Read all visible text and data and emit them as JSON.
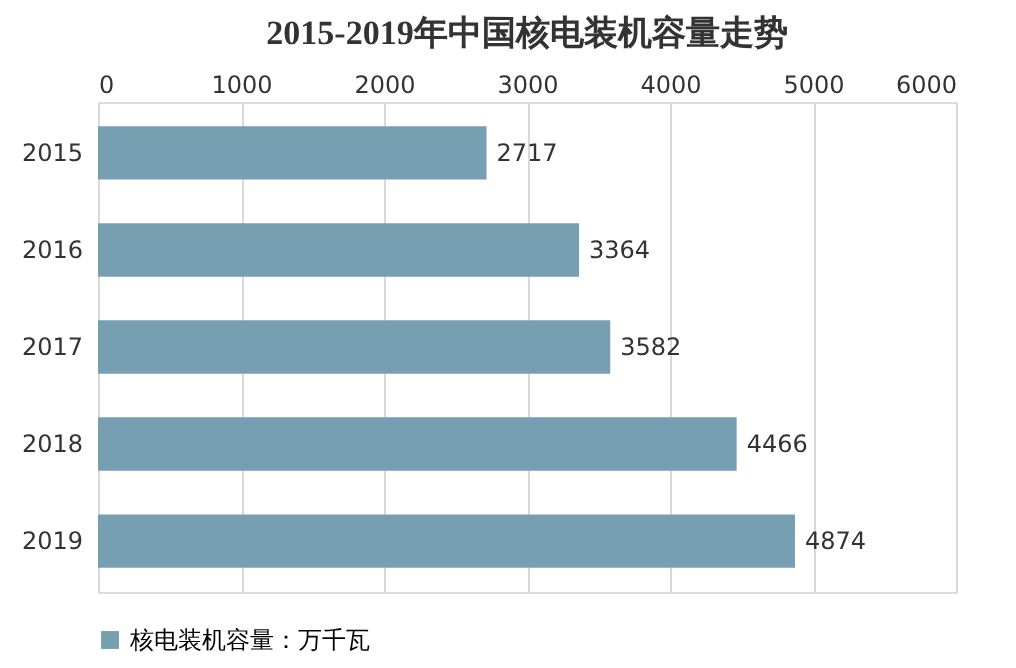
{
  "chart_data": {
    "type": "bar",
    "orientation": "horizontal",
    "title": "2015-2019年中国核电装机容量走势",
    "categories": [
      "2015",
      "2016",
      "2017",
      "2018",
      "2019"
    ],
    "series": [
      {
        "name": "核电装机容量：万千瓦",
        "color": "#779fb2",
        "values": [
          2717,
          3364,
          3582,
          4466,
          4874
        ]
      }
    ],
    "xlim": [
      0,
      6000
    ],
    "xticks": [
      0,
      1000,
      2000,
      3000,
      4000,
      5000,
      6000
    ],
    "grid": "x",
    "legend": "bottom",
    "data_labels": true
  }
}
